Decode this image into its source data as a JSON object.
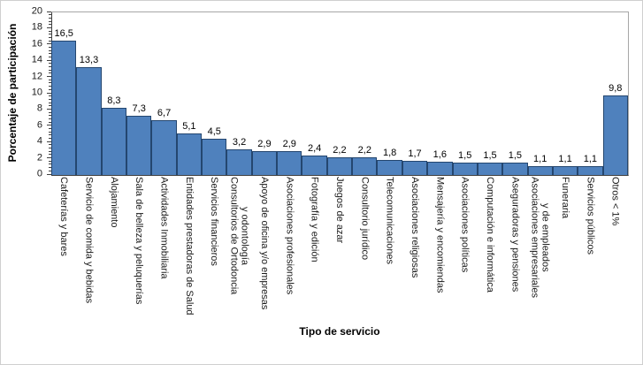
{
  "chart_data": {
    "type": "bar",
    "title": "",
    "xlabel": "Tipo de servicio",
    "ylabel": "Porcentaje de participación",
    "ylim": [
      0,
      20
    ],
    "y_major_tick": 2,
    "y_minor_tick": 0.4,
    "grid": false,
    "legend": "none",
    "bar_fill_color": "#4F81BD",
    "bar_border_color": "#24466F",
    "categories": [
      "Cafeterías y bares",
      "Servicio de comida y bebidas",
      "Alojamiento",
      "Sala de belleza y peluquerías",
      "Actividades Inmobiliaria",
      "Entidades prestadoras de Salud",
      "Servicios financieros",
      "Consultorios de Ortodoncia\ny odontología",
      "Apoyo de oficina y/o empresas",
      "Asociaciones profesionales",
      "Fotografía y edición",
      "Juegos de azar",
      "Consultorio jurídico",
      "Telecomunicaciones",
      "Asociaciones religiosas",
      "Mensajería y encomiendas",
      "Asociaciones políticas",
      "Computación e informática",
      "Aseguradoras y pensiones",
      "Asociaciones empresariales\ny de empleados",
      "Funeraria",
      "Servicios públicos",
      "Otros < 1%"
    ],
    "values": [
      16.5,
      13.3,
      8.3,
      7.3,
      6.7,
      5.1,
      4.5,
      3.2,
      2.9,
      2.9,
      2.4,
      2.2,
      2.2,
      1.8,
      1.7,
      1.6,
      1.5,
      1.5,
      1.5,
      1.1,
      1.1,
      1.1,
      9.8
    ],
    "value_labels": [
      "16,5",
      "13,3",
      "8,3",
      "7,3",
      "6,7",
      "5,1",
      "4,5",
      "3,2",
      "2,9",
      "2,9",
      "2,4",
      "2,2",
      "2,2",
      "1,8",
      "1,7",
      "1,6",
      "1,5",
      "1,5",
      "1,5",
      "1,1",
      "1,1",
      "1,1",
      "9,8"
    ],
    "y_tick_labels": [
      "0",
      "2",
      "4",
      "6",
      "8",
      "10",
      "12",
      "14",
      "16",
      "18",
      "20"
    ]
  }
}
